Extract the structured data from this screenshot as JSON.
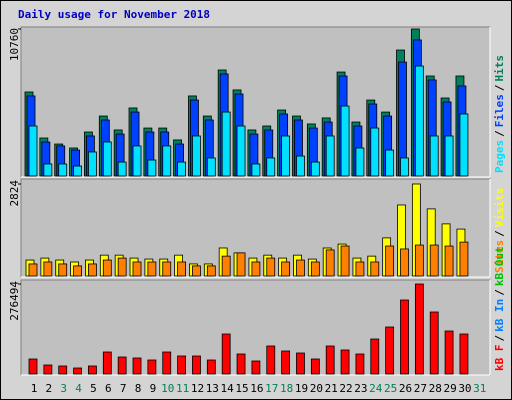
{
  "chart_data": [
    {
      "type": "bar",
      "title": "Daily usage for November 2018",
      "ylim": [
        0,
        10760
      ],
      "yticks": [
        10760
      ],
      "legend_separator": "/",
      "series": [
        {
          "name": "Hits",
          "color": "#00805c",
          "values": [
            6150,
            2780,
            2340,
            2050,
            3220,
            4390,
            3370,
            4980,
            3510,
            3510,
            2640,
            5860,
            4390,
            7760,
            6300,
            3370,
            3660,
            4830,
            4390,
            3810,
            4250,
            7610,
            3950,
            5560,
            4680,
            9220,
            10760,
            7320,
            5710,
            7320,
            null
          ]
        },
        {
          "name": "Files",
          "color": "#0040ff",
          "values": [
            5860,
            2490,
            2200,
            1900,
            2930,
            4100,
            3070,
            4680,
            3220,
            3220,
            2340,
            5560,
            4100,
            7470,
            6000,
            3070,
            3370,
            4540,
            4100,
            3510,
            3950,
            7320,
            3660,
            5270,
            4390,
            8340,
            9960,
            7030,
            5420,
            6590,
            null
          ]
        },
        {
          "name": "Pages",
          "color": "#00e0ff",
          "values": [
            3660,
            880,
            880,
            730,
            1760,
            2490,
            1020,
            2200,
            1170,
            2200,
            1020,
            2930,
            1320,
            4680,
            3660,
            880,
            1320,
            2930,
            1460,
            1020,
            2930,
            5120,
            2050,
            3510,
            1900,
            1320,
            8050,
            2930,
            2930,
            4540,
            null
          ]
        }
      ]
    },
    {
      "type": "bar",
      "ylim": [
        0,
        2824
      ],
      "yticks": [
        2824
      ],
      "legend_separator": "/",
      "series": [
        {
          "name": "Visits",
          "color": "#ffff00",
          "values": [
            490,
            550,
            490,
            430,
            490,
            640,
            640,
            550,
            520,
            520,
            640,
            370,
            370,
            860,
            710,
            550,
            640,
            550,
            640,
            520,
            860,
            980,
            550,
            610,
            1170,
            2180,
            2824,
            2060,
            1600,
            1440,
            null
          ]
        },
        {
          "name": "Sites",
          "color": "#ff8000",
          "values": [
            370,
            430,
            370,
            310,
            370,
            490,
            550,
            430,
            430,
            430,
            430,
            310,
            310,
            610,
            710,
            430,
            550,
            430,
            490,
            430,
            800,
            920,
            430,
            430,
            920,
            830,
            950,
            950,
            920,
            1040,
            null
          ]
        }
      ]
    },
    {
      "type": "bar",
      "ylim": [
        0,
        276494
      ],
      "yticks": [
        276494
      ],
      "legend_separator": "/",
      "categories": [
        "1",
        "2",
        "3",
        "4",
        "5",
        "6",
        "7",
        "8",
        "9",
        "10",
        "11",
        "12",
        "13",
        "14",
        "15",
        "16",
        "17",
        "18",
        "19",
        "20",
        "21",
        "22",
        "23",
        "24",
        "25",
        "26",
        "27",
        "28",
        "29",
        "30",
        "31"
      ],
      "category_colors": [
        "#000",
        "#000",
        "#00805c",
        "#00805c",
        "#000",
        "#000",
        "#000",
        "#000",
        "#000",
        "#00805c",
        "#00805c",
        "#000",
        "#000",
        "#000",
        "#000",
        "#000",
        "#00805c",
        "#00805c",
        "#000",
        "#000",
        "#000",
        "#000",
        "#000",
        "#00805c",
        "#00805c",
        "#000",
        "#000",
        "#000",
        "#000",
        "#000",
        "#00805c"
      ],
      "series": [
        {
          "name": "kB Out",
          "color": "#00c000",
          "values": [
            null,
            null,
            null,
            null,
            null,
            null,
            null,
            null,
            null,
            null,
            null,
            null,
            null,
            null,
            null,
            null,
            null,
            null,
            null,
            null,
            null,
            null,
            null,
            null,
            null,
            null,
            null,
            null,
            null,
            null,
            null
          ]
        },
        {
          "name": "kB In",
          "color": "#0080ff",
          "values": [
            null,
            null,
            null,
            null,
            null,
            null,
            null,
            null,
            null,
            null,
            null,
            null,
            null,
            null,
            null,
            null,
            null,
            null,
            null,
            null,
            null,
            null,
            null,
            null,
            null,
            null,
            null,
            null,
            null,
            null,
            null
          ]
        },
        {
          "name": "kB F",
          "color": "#ff0000",
          "values": [
            46080,
            27650,
            24580,
            18430,
            24580,
            67580,
            52220,
            49150,
            43010,
            67580,
            55300,
            55300,
            43010,
            122880,
            61440,
            39940,
            86020,
            70660,
            64510,
            46080,
            86020,
            73730,
            61440,
            107520,
            144380,
            227330,
            276494,
            190460,
            132100,
            122880,
            null
          ]
        }
      ]
    }
  ]
}
